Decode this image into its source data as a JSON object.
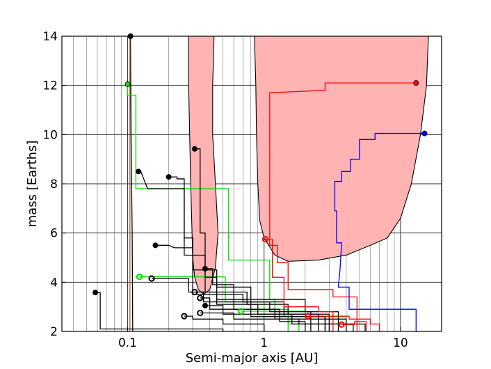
{
  "chart_data": {
    "type": "line",
    "title": "",
    "xlabel": "Semi-major axis [AU]",
    "ylabel": "mass [Earths]",
    "xscale": "log",
    "xlim": [
      0.033,
      20
    ],
    "ylim": [
      2,
      14
    ],
    "xticks": [
      0.1,
      1,
      10
    ],
    "xtick_labels": [
      "0.1",
      "1",
      "10"
    ],
    "yticks": [
      2,
      4,
      6,
      8,
      10,
      12,
      14
    ],
    "ytick_labels": [
      "2",
      "4",
      "6",
      "8",
      "10",
      "12",
      "14"
    ],
    "grid": true,
    "colors": {
      "region_fill": "#ffb3b3",
      "black": "#000000",
      "green": "#00cc00",
      "red": "#ff0000",
      "blue": "#0000ff"
    },
    "shaded_regions": [
      {
        "points": [
          [
            0.28,
            14
          ],
          [
            0.28,
            12
          ],
          [
            0.29,
            8
          ],
          [
            0.3,
            5
          ],
          [
            0.31,
            4.2
          ],
          [
            0.33,
            3.7
          ],
          [
            0.36,
            3.5
          ],
          [
            0.4,
            3.7
          ],
          [
            0.44,
            4.6
          ],
          [
            0.46,
            6
          ],
          [
            0.44,
            8
          ],
          [
            0.42,
            10
          ],
          [
            0.42,
            12
          ],
          [
            0.43,
            14
          ]
        ]
      },
      {
        "points": [
          [
            0.85,
            14
          ],
          [
            0.87,
            12
          ],
          [
            0.88,
            10
          ],
          [
            0.9,
            8
          ],
          [
            0.93,
            6.5
          ],
          [
            1.0,
            5.8
          ],
          [
            1.2,
            5.1
          ],
          [
            1.5,
            4.85
          ],
          [
            2.5,
            4.9
          ],
          [
            4,
            5.1
          ],
          [
            6,
            5.5
          ],
          [
            8,
            5.8
          ],
          [
            10,
            6.6
          ],
          [
            12,
            8
          ],
          [
            14,
            10
          ],
          [
            15.5,
            12
          ],
          [
            16,
            14
          ]
        ]
      }
    ],
    "series": [
      {
        "color": "black",
        "marker": "filled",
        "start": [
          0.1,
          14.5
        ],
        "points": [
          [
            0.105,
            14.5
          ],
          [
            0.106,
            10
          ],
          [
            0.108,
            6
          ],
          [
            0.109,
            2
          ]
        ]
      },
      {
        "color": "brown",
        "marker": "none",
        "points": [
          [
            0.104,
            14.5
          ],
          [
            0.104,
            2
          ]
        ]
      },
      {
        "color": "green",
        "marker": "filled",
        "points": [
          [
            0.1,
            12.05
          ],
          [
            0.1,
            11.6
          ],
          [
            0.115,
            11.6
          ],
          [
            0.115,
            7.8
          ],
          [
            0.4,
            7.8
          ],
          [
            0.5,
            7.8
          ],
          [
            0.55,
            7.8
          ],
          [
            0.55,
            4.9
          ],
          [
            1.1,
            4.9
          ],
          [
            1.1,
            3.3
          ],
          [
            1.2,
            3.3
          ],
          [
            1.2,
            2.9
          ],
          [
            1.5,
            2.9
          ],
          [
            1.5,
            2.3
          ],
          [
            1.8,
            2.3
          ],
          [
            1.8,
            2
          ]
        ]
      },
      {
        "color": "green",
        "marker": "open",
        "points": [
          [
            0.122,
            4.22
          ],
          [
            0.2,
            4.22
          ],
          [
            0.3,
            4.22
          ],
          [
            0.5,
            4.22
          ],
          [
            0.52,
            4.2
          ],
          [
            0.52,
            3.2
          ],
          [
            1,
            3.2
          ],
          [
            1,
            2.6
          ],
          [
            1.5,
            2.6
          ],
          [
            1.5,
            2
          ]
        ]
      },
      {
        "color": "green",
        "marker": "open",
        "points": [
          [
            0.68,
            2.82
          ],
          [
            1.1,
            2.82
          ],
          [
            2,
            2.82
          ],
          [
            2,
            2.6
          ],
          [
            4,
            2.6
          ],
          [
            4,
            2
          ]
        ]
      },
      {
        "color": "black",
        "marker": "filled",
        "points": [
          [
            0.31,
            9.42
          ],
          [
            0.34,
            9.42
          ],
          [
            0.34,
            6
          ],
          [
            0.37,
            6
          ],
          [
            0.37,
            4.2
          ],
          [
            0.45,
            4.2
          ],
          [
            0.45,
            3.3
          ],
          [
            0.8,
            3.3
          ],
          [
            0.8,
            2.9
          ],
          [
            1.3,
            2.9
          ],
          [
            1.3,
            2.4
          ],
          [
            2,
            2.4
          ],
          [
            2,
            2
          ]
        ]
      },
      {
        "color": "black",
        "marker": "filled",
        "points": [
          [
            0.12,
            8.5
          ],
          [
            0.125,
            8.5
          ],
          [
            0.14,
            7.8
          ],
          [
            0.26,
            7.8
          ],
          [
            0.26,
            5.8
          ],
          [
            0.3,
            5.8
          ],
          [
            0.3,
            3.5
          ],
          [
            0.7,
            3.5
          ],
          [
            0.7,
            3.2
          ],
          [
            1.4,
            3.2
          ],
          [
            1.4,
            2.6
          ],
          [
            2.8,
            2.6
          ],
          [
            2.8,
            2
          ]
        ]
      },
      {
        "color": "black",
        "marker": "filled",
        "points": [
          [
            0.2,
            8.28
          ],
          [
            0.23,
            8.28
          ],
          [
            0.23,
            8.2
          ],
          [
            0.26,
            8.2
          ],
          [
            0.26,
            5.1
          ],
          [
            0.37,
            5.1
          ],
          [
            0.37,
            3.6
          ],
          [
            0.75,
            3.6
          ],
          [
            0.75,
            3.1
          ],
          [
            1.5,
            3.1
          ],
          [
            1.5,
            2.7
          ],
          [
            3,
            2.7
          ],
          [
            3,
            2
          ]
        ]
      },
      {
        "color": "black",
        "marker": "filled",
        "points": [
          [
            0.16,
            5.5
          ],
          [
            0.2,
            5.5
          ],
          [
            0.22,
            5.4
          ],
          [
            0.3,
            5.4
          ],
          [
            0.3,
            4.5
          ],
          [
            0.45,
            4.5
          ],
          [
            0.45,
            3.8
          ],
          [
            0.8,
            3.8
          ],
          [
            0.8,
            3.3
          ],
          [
            2,
            3.3
          ],
          [
            2,
            2.8
          ],
          [
            3.5,
            2.8
          ],
          [
            3.5,
            2
          ]
        ]
      },
      {
        "color": "black",
        "marker": "filled",
        "points": [
          [
            0.37,
            4.55
          ],
          [
            0.42,
            4.55
          ],
          [
            0.42,
            3.9
          ],
          [
            0.6,
            3.9
          ],
          [
            0.6,
            3.2
          ],
          [
            1.1,
            3.2
          ],
          [
            1.1,
            2.8
          ],
          [
            2.2,
            2.8
          ],
          [
            2.2,
            2
          ]
        ]
      },
      {
        "color": "black",
        "marker": "filled",
        "points": [
          [
            0.058,
            3.58
          ],
          [
            0.063,
            3.58
          ],
          [
            0.063,
            2.1
          ],
          [
            0.3,
            2.1
          ],
          [
            0.5,
            2.1
          ],
          [
            0.5,
            2
          ]
        ]
      },
      {
        "color": "black",
        "marker": "open",
        "points": [
          [
            0.15,
            4.15
          ],
          [
            0.22,
            4.15
          ],
          [
            0.28,
            4.15
          ],
          [
            0.28,
            3.6
          ],
          [
            0.45,
            3.6
          ],
          [
            0.45,
            3.1
          ],
          [
            0.9,
            3.1
          ],
          [
            0.9,
            2.7
          ],
          [
            2.5,
            2.7
          ],
          [
            2.5,
            2
          ]
        ]
      },
      {
        "color": "black",
        "marker": "open",
        "points": [
          [
            0.31,
            3.6
          ],
          [
            0.36,
            3.6
          ],
          [
            0.36,
            3.2
          ],
          [
            0.6,
            3.2
          ],
          [
            0.6,
            2.9
          ],
          [
            1.2,
            2.9
          ],
          [
            1.2,
            2.5
          ],
          [
            4,
            2.5
          ],
          [
            4,
            2
          ]
        ]
      },
      {
        "color": "black",
        "marker": "open",
        "points": [
          [
            0.34,
            3.36
          ],
          [
            0.4,
            3.36
          ],
          [
            0.4,
            2.9
          ],
          [
            0.8,
            2.9
          ],
          [
            0.8,
            2.6
          ],
          [
            2.8,
            2.6
          ],
          [
            2.8,
            2
          ]
        ]
      },
      {
        "color": "black",
        "marker": "open",
        "points": [
          [
            0.34,
            2.75
          ],
          [
            0.6,
            2.75
          ],
          [
            0.6,
            2.5
          ],
          [
            1.8,
            2.5
          ],
          [
            1.8,
            2.3
          ],
          [
            4.5,
            2.3
          ],
          [
            4.5,
            2
          ]
        ]
      },
      {
        "color": "black",
        "marker": "open",
        "points": [
          [
            0.26,
            2.62
          ],
          [
            0.3,
            2.62
          ],
          [
            0.3,
            2.5
          ],
          [
            0.5,
            2.5
          ],
          [
            0.5,
            2.3
          ],
          [
            1,
            2.3
          ],
          [
            1,
            2
          ]
        ]
      },
      {
        "color": "black",
        "marker": "filled",
        "points": [
          [
            0.37,
            3.05
          ],
          [
            0.5,
            3.05
          ],
          [
            0.5,
            2.7
          ],
          [
            1.6,
            2.7
          ],
          [
            1.6,
            2.3
          ],
          [
            5.5,
            2.3
          ],
          [
            5.5,
            2
          ]
        ]
      },
      {
        "color": "red",
        "marker": "filled",
        "points": [
          [
            13,
            12.1
          ],
          [
            2.8,
            12.1
          ],
          [
            2.8,
            11.8
          ],
          [
            1.1,
            11.7
          ],
          [
            1.1,
            5.5
          ],
          [
            1.25,
            5.5
          ],
          [
            1.25,
            4.8
          ],
          [
            1.5,
            4.8
          ],
          [
            1.5,
            3.7
          ],
          [
            3.2,
            3.7
          ],
          [
            3.2,
            3.4
          ],
          [
            4.8,
            3.4
          ],
          [
            4.8,
            2
          ]
        ]
      },
      {
        "color": "red",
        "marker": "open",
        "points": [
          [
            1.02,
            5.75
          ],
          [
            1.15,
            5.75
          ],
          [
            1.15,
            4.2
          ],
          [
            1.4,
            4.2
          ],
          [
            1.4,
            3
          ],
          [
            2.5,
            3
          ],
          [
            2.5,
            2.8
          ],
          [
            3.2,
            2.8
          ],
          [
            3.2,
            2
          ]
        ]
      },
      {
        "color": "red",
        "marker": "open",
        "points": [
          [
            2.1,
            2.62
          ],
          [
            4.2,
            2.62
          ],
          [
            4.2,
            2.5
          ],
          [
            6,
            2.5
          ],
          [
            6,
            2.3
          ],
          [
            7,
            2.3
          ],
          [
            7,
            2
          ]
        ]
      },
      {
        "color": "red",
        "marker": "open",
        "points": [
          [
            3.7,
            2.28
          ],
          [
            4.6,
            2.28
          ],
          [
            4.6,
            2.4
          ],
          [
            5.6,
            2.4
          ],
          [
            5.6,
            2
          ]
        ]
      },
      {
        "color": "blue",
        "marker": "filled",
        "points": [
          [
            15,
            10.05
          ],
          [
            6.5,
            10.05
          ],
          [
            6.5,
            9.8
          ],
          [
            5,
            9.8
          ],
          [
            5,
            9
          ],
          [
            4.3,
            9
          ],
          [
            4.3,
            8.5
          ],
          [
            3.7,
            8.5
          ],
          [
            3.7,
            8.1
          ],
          [
            3.3,
            8.1
          ],
          [
            3.3,
            6.9
          ],
          [
            3.4,
            6.9
          ],
          [
            3.4,
            5.6
          ],
          [
            3.7,
            5.6
          ],
          [
            3.6,
            4.5
          ],
          [
            3.5,
            3.8
          ],
          [
            4.2,
            3.8
          ],
          [
            4.2,
            2.9
          ],
          [
            13,
            2.9
          ],
          [
            13,
            2
          ]
        ]
      }
    ]
  }
}
